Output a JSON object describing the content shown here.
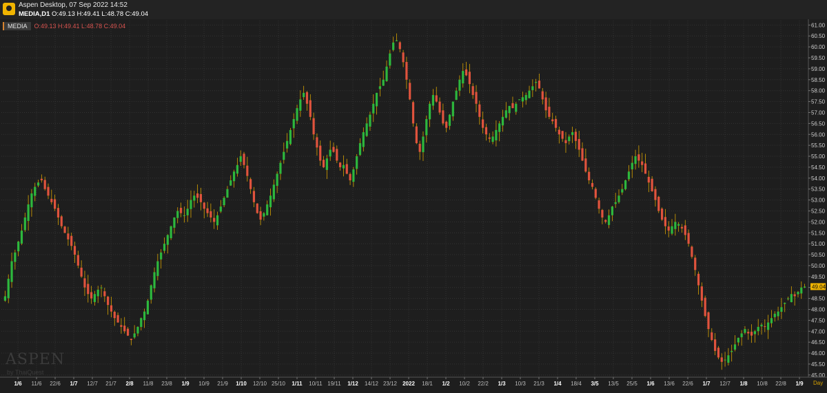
{
  "window": {
    "title": "Aspen Desktop, 07 Sep 2022 14:52",
    "symbol_line": "MEDIA,D1",
    "ohlc_line": "O:49.13 H:49.41 L:48.78 C:49.04"
  },
  "legend": {
    "symbol": "MEDIA",
    "ohlc": "O:49.13 H:49.41 L:48.78 C:49.04"
  },
  "watermark": {
    "brand": "ASPEN",
    "by": "by ThaiQuest"
  },
  "colors": {
    "background": "#1e1e1e",
    "grid": "#3a3a3a",
    "up": "#2db83d",
    "down": "#e0533d",
    "price_tag": "#f0b400"
  },
  "chart_data": {
    "type": "candlestick",
    "timeframe_label": "Day",
    "current_price_label": "49.04",
    "y_ticks": [
      "61.00",
      "60.50",
      "60.00",
      "59.50",
      "59.00",
      "58.50",
      "58.00",
      "57.50",
      "57.00",
      "56.50",
      "56.00",
      "55.50",
      "55.00",
      "54.50",
      "54.00",
      "53.50",
      "53.00",
      "52.50",
      "52.00",
      "51.50",
      "51.00",
      "50.50",
      "50.00",
      "49.50",
      "49.00",
      "48.50",
      "48.00",
      "47.50",
      "47.00",
      "46.50",
      "46.00",
      "45.50",
      "45.00"
    ],
    "x_ticks": [
      "1/6",
      "11/6",
      "22/6",
      "1/7",
      "12/7",
      "21/7",
      "2/8",
      "11/8",
      "23/8",
      "1/9",
      "10/9",
      "21/9",
      "1/10",
      "12/10",
      "25/10",
      "1/11",
      "10/11",
      "19/11",
      "1/12",
      "14/12",
      "23/12",
      "2022",
      "18/1",
      "1/2",
      "10/2",
      "22/2",
      "1/3",
      "10/3",
      "21/3",
      "1/4",
      "18/4",
      "3/5",
      "13/5",
      "25/5",
      "1/6",
      "13/6",
      "22/6",
      "1/7",
      "12/7",
      "1/8",
      "10/8",
      "22/8",
      "1/9"
    ],
    "bold_x_ticks": [
      "1/6",
      "1/7",
      "2/8",
      "1/9",
      "1/10",
      "1/11",
      "1/12",
      "2022",
      "1/2",
      "1/3",
      "1/4",
      "3/5",
      "1/6",
      "1/7",
      "1/8",
      "1/9"
    ],
    "ylim": [
      44.9,
      61.2
    ],
    "closes": [
      48.6,
      49.4,
      50.2,
      50.6,
      51.1,
      51.6,
      52.2,
      52.8,
      53.3,
      53.6,
      53.8,
      53.9,
      53.5,
      53.2,
      52.9,
      52.6,
      52.2,
      51.8,
      51.5,
      51.2,
      50.9,
      50.5,
      50.0,
      49.5,
      49.0,
      48.7,
      48.5,
      48.7,
      48.9,
      49.0,
      48.6,
      48.2,
      47.9,
      47.6,
      47.4,
      47.2,
      47.0,
      46.8,
      46.6,
      46.9,
      47.2,
      47.6,
      47.9,
      48.4,
      49.1,
      49.7,
      50.2,
      50.6,
      51.0,
      51.4,
      51.8,
      52.2,
      52.5,
      52.4,
      52.3,
      52.6,
      53.0,
      53.2,
      53.1,
      52.9,
      52.6,
      52.4,
      52.2,
      52.0,
      52.3,
      52.7,
      53.1,
      53.5,
      53.9,
      54.3,
      54.6,
      55.0,
      54.6,
      54.1,
      53.5,
      52.9,
      52.4,
      52.1,
      52.4,
      52.8,
      53.2,
      53.7,
      54.2,
      54.7,
      55.2,
      55.7,
      56.2,
      56.7,
      57.2,
      57.6,
      57.9,
      57.4,
      56.8,
      56.0,
      55.4,
      54.8,
      54.5,
      54.9,
      55.3,
      55.2,
      54.8,
      54.5,
      54.6,
      54.2,
      53.9,
      54.4,
      55.0,
      55.6,
      56.1,
      56.5,
      56.9,
      57.4,
      57.9,
      58.2,
      58.5,
      59.1,
      59.7,
      60.2,
      60.3,
      59.9,
      59.3,
      58.5,
      57.6,
      56.5,
      55.6,
      55.2,
      55.9,
      56.7,
      57.4,
      57.8,
      57.5,
      57.0,
      56.5,
      56.3,
      56.9,
      57.5,
      58.0,
      58.5,
      58.9,
      58.7,
      58.3,
      57.8,
      57.4,
      56.8,
      56.3,
      56.0,
      55.8,
      55.9,
      56.2,
      56.5,
      56.8,
      57.1,
      57.3,
      57.2,
      57.4,
      57.6,
      57.7,
      57.8,
      58.0,
      58.2,
      58.4,
      58.1,
      57.6,
      57.1,
      56.8,
      56.6,
      56.3,
      56.0,
      55.8,
      55.6,
      55.9,
      56.1,
      55.7,
      55.3,
      54.8,
      54.3,
      53.9,
      53.6,
      53.1,
      52.6,
      52.2,
      52.0,
      52.3,
      52.7,
      52.9,
      53.2,
      53.5,
      53.9,
      54.3,
      54.7,
      55.0,
      54.8,
      54.6,
      54.2,
      53.8,
      53.4,
      53.0,
      52.5,
      52.1,
      51.8,
      51.6,
      51.8,
      52.0,
      51.9,
      51.7,
      51.4,
      51.0,
      50.4,
      49.8,
      49.1,
      48.4,
      47.7,
      47.1,
      46.6,
      46.1,
      45.8,
      45.6,
      45.7,
      45.9,
      46.1,
      46.4,
      46.7,
      46.9,
      47.1,
      46.9,
      46.8,
      47.0,
      47.2,
      47.3,
      47.2,
      47.4,
      47.6,
      47.8,
      47.9,
      48.1,
      48.3,
      48.5,
      48.7,
      48.6,
      48.8,
      49.0,
      49.04
    ]
  }
}
